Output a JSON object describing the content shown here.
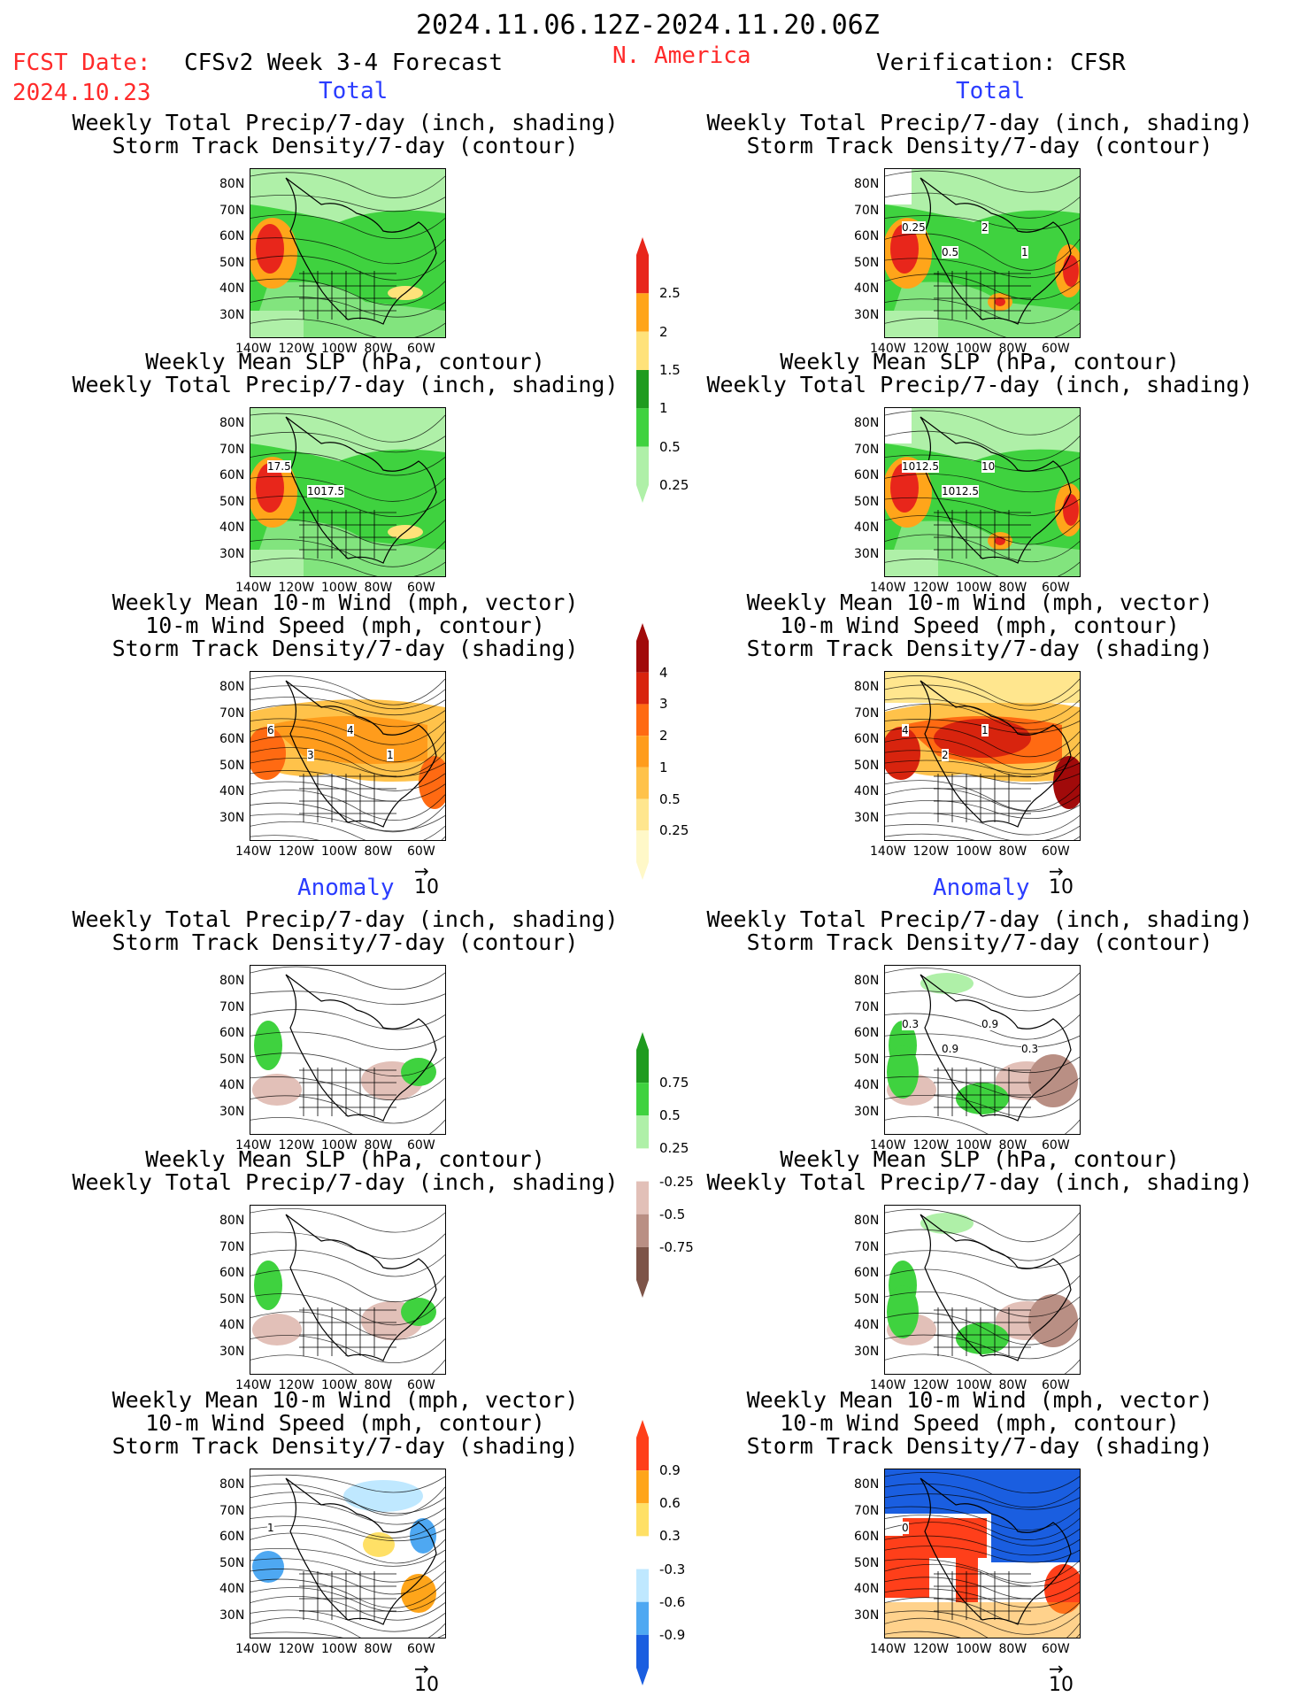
{
  "header": {
    "dates": "2024.11.06.12Z-2024.11.20.06Z",
    "fcst_label": "FCST Date:",
    "fcst_date": "2024.10.23",
    "forecast_title": "CFSv2 Week 3-4 Forecast",
    "region": "N. America",
    "verification": "Verification: CFSR"
  },
  "sections": {
    "total": "Total",
    "anomaly": "Anomaly"
  },
  "titles": {
    "precip_storm": [
      "Weekly Total Precip/7-day (inch, shading)",
      "Storm Track Density/7-day (contour)"
    ],
    "slp_precip": [
      "Weekly Mean SLP (hPa, contour)",
      "Weekly Total Precip/7-day (inch, shading)"
    ],
    "wind": [
      "Weekly Mean 10-m Wind (mph, vector)",
      "10-m Wind Speed (mph, contour)",
      "Storm Track Density/7-day (shading)"
    ]
  },
  "axes": {
    "lat": [
      "80N",
      "70N",
      "60N",
      "50N",
      "40N",
      "30N"
    ],
    "lon": [
      "140W",
      "120W",
      "100W",
      "80W",
      "60W"
    ]
  },
  "vector_ref": "10",
  "map_labels": {
    "r1_right": [
      "0.25",
      "0.5",
      "2",
      "1"
    ],
    "r2_left": [
      "17.5",
      "1017.5"
    ],
    "r2_right": [
      "1012.5",
      "1012.5",
      "10"
    ],
    "r3_left": [
      "6",
      "3",
      "4",
      "1"
    ],
    "r3_right": [
      "4",
      "2",
      "1"
    ],
    "r4_right": [
      "0.3",
      "0.9",
      "0.9",
      "0.3"
    ],
    "r6_left": [
      "1"
    ],
    "r6_right": [
      "0"
    ]
  },
  "colorbars": {
    "precip_total": {
      "labels": [
        "2.5",
        "2",
        "1.5",
        "1",
        "0.5",
        "0.25"
      ],
      "colors": [
        "#e8261b",
        "#ffa51a",
        "#ffe27a",
        "#1f9b1f",
        "#3fd23f",
        "#aff0a8"
      ]
    },
    "storm_total": {
      "labels": [
        "4",
        "3",
        "2",
        "1",
        "0.5",
        "0.25"
      ],
      "colors": [
        "#a10a0a",
        "#d8240e",
        "#ff6a12",
        "#ff9c1c",
        "#ffc24a",
        "#ffe68e",
        "#fff8c8"
      ]
    },
    "precip_anom": {
      "labels": [
        "0.75",
        "0.5",
        "0.25",
        "-0.25",
        "-0.5",
        "-0.75"
      ],
      "colors": [
        "#1f9b1f",
        "#3fd23f",
        "#aff0a8",
        "#ffffff",
        "#e2c0b8",
        "#b98f84",
        "#7d5448"
      ]
    },
    "storm_anom": {
      "labels": [
        "0.9",
        "0.6",
        "0.3",
        "-0.3",
        "-0.6",
        "-0.9"
      ],
      "colors": [
        "#ff3f1a",
        "#ffa51a",
        "#ffe066",
        "#ffffff",
        "#bfe8ff",
        "#4ea8f2",
        "#1a5ee0"
      ]
    }
  }
}
